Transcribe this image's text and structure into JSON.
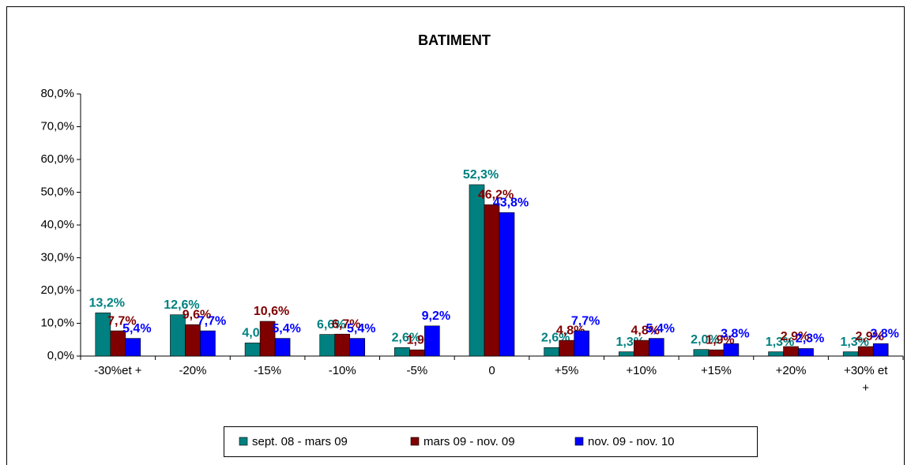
{
  "chart_data": {
    "type": "bar",
    "title": "BATIMENT",
    "categories": [
      "-30%et +",
      "-20%",
      "-15%",
      "-10%",
      "-5%",
      "0",
      "+5%",
      "+10%",
      "+15%",
      "+20%",
      "+30% et +"
    ],
    "series": [
      {
        "name": "sept. 08 - mars 09",
        "color": "#008080",
        "values": [
          13.2,
          12.6,
          4.0,
          6.6,
          2.6,
          52.3,
          2.6,
          1.3,
          2.0,
          1.3,
          1.3
        ],
        "value_labels": [
          "13,2%",
          "12,6%",
          "4,0%",
          "6,6%",
          "2,6%",
          "52,3%",
          "2,6%",
          "1,3%",
          "2,0%",
          "1,3%",
          "1,3%"
        ]
      },
      {
        "name": "mars 09 - nov. 09",
        "color": "#800000",
        "values": [
          7.7,
          9.6,
          10.6,
          6.7,
          1.9,
          46.2,
          4.8,
          4.8,
          1.9,
          2.9,
          2.9
        ],
        "value_labels": [
          "7,7%",
          "9,6%",
          "10,6%",
          "6,7%",
          "1,9%",
          "46,2%",
          "4,8%",
          "4,8%",
          "1,9%",
          "2,9%",
          "2,9%"
        ]
      },
      {
        "name": "nov. 09 - nov. 10",
        "color": "#0000ff",
        "values": [
          5.4,
          7.7,
          5.4,
          5.4,
          9.2,
          43.8,
          7.7,
          5.4,
          3.8,
          2.3,
          3.8
        ],
        "value_labels": [
          "5,4%",
          "7,7%",
          "5,4%",
          "5,4%",
          "9,2%",
          "43,8%",
          "7,7%",
          "5,4%",
          "3,8%",
          "2,3%",
          "3,8%"
        ]
      }
    ],
    "ylim": [
      0,
      80
    ],
    "yticks": [
      {
        "value": 0,
        "label": "0,0%"
      },
      {
        "value": 10,
        "label": "10,0%"
      },
      {
        "value": 20,
        "label": "20,0%"
      },
      {
        "value": 30,
        "label": "30,0%"
      },
      {
        "value": 40,
        "label": "40,0%"
      },
      {
        "value": 50,
        "label": "50,0%"
      },
      {
        "value": 60,
        "label": "60,0%"
      },
      {
        "value": 70,
        "label": "70,0%"
      },
      {
        "value": 80,
        "label": "80,0%"
      }
    ],
    "legend": "bottom"
  }
}
